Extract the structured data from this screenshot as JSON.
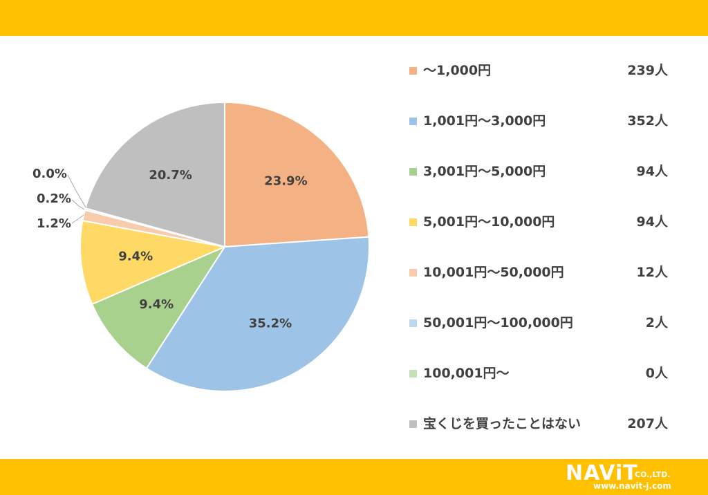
{
  "brand": {
    "logo_text": "NAViT",
    "company_suffix": "CO.,LTD.",
    "website": "www.navit-j.com",
    "band_color": "#FFC000"
  },
  "chart_data": {
    "type": "pie",
    "categories": [
      "～1,000円",
      "1,001円～3,000円",
      "3,001円～5,000円",
      "5,001円～10,000円",
      "10,001円～50,000円",
      "50,001円～100,000円",
      "100,001円～",
      "宝くじを買ったことはない"
    ],
    "counts": [
      "239人",
      "352人",
      "94人",
      "94人",
      "12人",
      "2人",
      "0人",
      "207人"
    ],
    "values": [
      239,
      352,
      94,
      94,
      12,
      2,
      0,
      207
    ],
    "percent_labels": [
      "23.9%",
      "35.2%",
      "9.4%",
      "9.4%",
      "1.2%",
      "0.2%",
      "0.0%",
      "20.7%"
    ],
    "colors": [
      "#F4B183",
      "#9DC3E6",
      "#A9D18E",
      "#FFD966",
      "#F8CBAD",
      "#BDD7EE",
      "#C5E0B4",
      "#BFBFBF"
    ],
    "legend_position": "right"
  }
}
